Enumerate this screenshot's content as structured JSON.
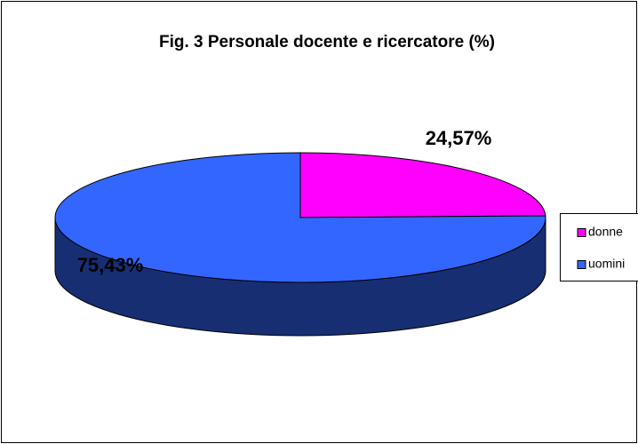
{
  "chart_data": {
    "type": "pie",
    "title": "Fig. 3 Personale docente e ricercatore (%)",
    "categories": [
      "donne",
      "uomini"
    ],
    "values": [
      24.57,
      75.43
    ],
    "value_labels": [
      "24,57%",
      "75,43%"
    ],
    "colors": [
      "#ff00ff",
      "#3366ff"
    ],
    "legend": "right",
    "three_d": true
  }
}
